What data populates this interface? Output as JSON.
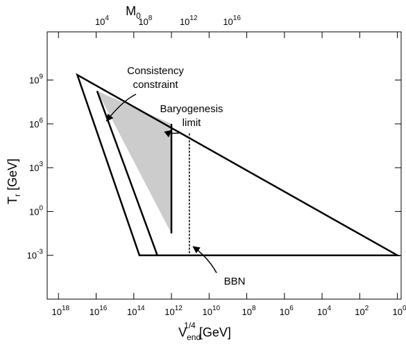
{
  "chart_data": {
    "type": "line",
    "title": "",
    "xlabel": {
      "main": "V",
      "sub": "end",
      "sup": "1/4",
      "unit": "[GeV]"
    },
    "ylabel": {
      "main": "T",
      "sub": "r",
      "unit": "[GeV]"
    },
    "top_label": {
      "main": "M",
      "sub": "0"
    },
    "x_scale": "log10",
    "x_reversed": true,
    "y_scale": "log10",
    "xlim_log10": [
      18.6,
      -0.2
    ],
    "ylim_log10": [
      -6.0,
      12.3
    ],
    "x_ticks": [
      {
        "exp": 18,
        "base": "10",
        "sup": "18"
      },
      {
        "exp": 16,
        "base": "10",
        "sup": "16"
      },
      {
        "exp": 14,
        "base": "10",
        "sup": "14"
      },
      {
        "exp": 12,
        "base": "10",
        "sup": "12"
      },
      {
        "exp": 10,
        "base": "10",
        "sup": "10"
      },
      {
        "exp": 8,
        "base": "10",
        "sup": "8"
      },
      {
        "exp": 6,
        "base": "10",
        "sup": "6"
      },
      {
        "exp": 4,
        "base": "10",
        "sup": "4"
      },
      {
        "exp": 2,
        "base": "10",
        "sup": "2"
      },
      {
        "exp": 0,
        "base": "10",
        "sup": "0"
      }
    ],
    "y_ticks": [
      {
        "exp": 9,
        "base": "10",
        "sup": "9"
      },
      {
        "exp": 6,
        "base": "10",
        "sup": "6"
      },
      {
        "exp": 3,
        "base": "10",
        "sup": "3"
      },
      {
        "exp": 0,
        "base": "10",
        "sup": "0"
      },
      {
        "exp": -3,
        "base": "10",
        "sup": "-3"
      }
    ],
    "top_ticks": [
      {
        "at_x_exp": 15.8,
        "base": "10",
        "sup": "4"
      },
      {
        "at_x_exp": 13.5,
        "base": "10",
        "sup": "8"
      },
      {
        "at_x_exp": 11.2,
        "base": "10",
        "sup": "12"
      },
      {
        "at_x_exp": 8.9,
        "base": "10",
        "sup": "16"
      }
    ],
    "outer_region_log10": [
      [
        17.0,
        9.35
      ],
      [
        0.0,
        -3.0
      ],
      [
        13.7,
        -3.0
      ]
    ],
    "consistency_line_log10": [
      [
        15.95,
        8.25
      ],
      [
        12.75,
        -3.0
      ]
    ],
    "shaded_region_log10": [
      [
        15.95,
        8.25
      ],
      [
        12.0,
        6.0
      ],
      [
        12.0,
        -1.5
      ]
    ],
    "shaded_color": "#cccccc",
    "baryogenesis_line_log10": [
      [
        12.0,
        6.0
      ],
      [
        12.0,
        -1.5
      ]
    ],
    "dotted_line_log10": [
      [
        11.05,
        5.35
      ],
      [
        11.05,
        -3.0
      ]
    ],
    "annotations": [
      {
        "lines": [
          "Consistency",
          "constraint"
        ],
        "arrow_to_log10": [
          15.45,
          6.2
        ]
      },
      {
        "lines": [
          "Baryogenesis",
          "limit"
        ],
        "arrow_to_log10": [
          12.0,
          5.55
        ]
      },
      {
        "lines": [
          "BBN"
        ],
        "arrow_to_log10": [
          10.85,
          -2.4
        ]
      }
    ]
  }
}
